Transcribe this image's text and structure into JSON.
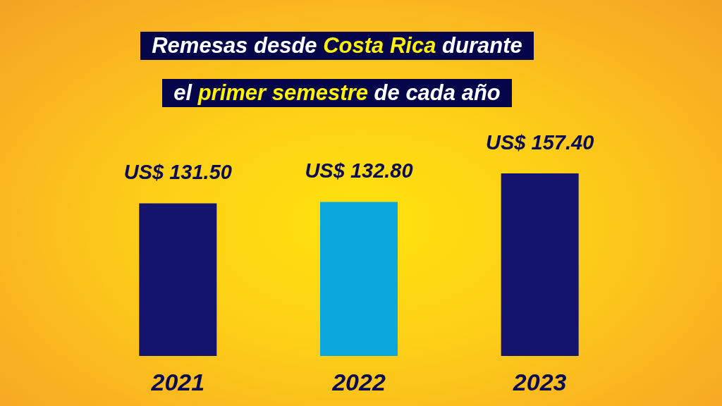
{
  "chart_data": {
    "type": "bar",
    "title": "Remesas desde Costa Rica durante el primer semestre de cada año",
    "categories": [
      "2021",
      "2022",
      "2023"
    ],
    "values": [
      131.5,
      132.8,
      157.4
    ],
    "colors": [
      "#14146e",
      "#0aa8dc",
      "#14146e"
    ],
    "value_labels": [
      "US$ 131.50",
      "US$ 132.80",
      "US$ 157.40"
    ],
    "tick_labels": "x"
  }
}
